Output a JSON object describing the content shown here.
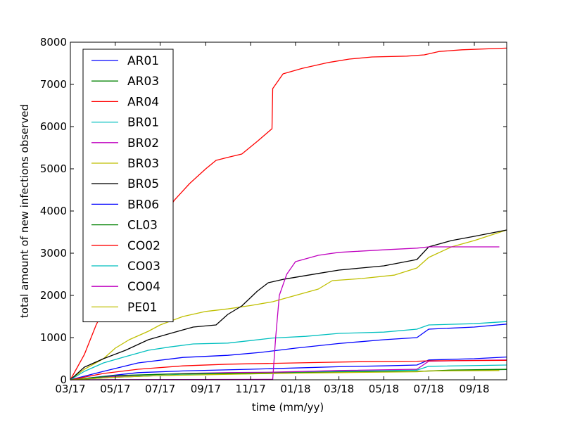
{
  "chart_data": {
    "type": "line",
    "title": "",
    "xlabel": "time (mm/yy)",
    "ylabel": "total amount of new infections observed",
    "x_tick_labels": [
      "03/17",
      "05/17",
      "07/17",
      "09/17",
      "11/17",
      "01/18",
      "03/18",
      "05/18",
      "07/18",
      "09/18"
    ],
    "y_tick_labels": [
      "0",
      "1000",
      "2000",
      "3000",
      "4000",
      "5000",
      "6000",
      "7000",
      "8000"
    ],
    "y_ticks": [
      0,
      1000,
      2000,
      3000,
      4000,
      5000,
      6000,
      7000,
      8000
    ],
    "xlim": [
      "2017-03-01",
      "2018-10-15"
    ],
    "ylim": [
      0,
      8000
    ],
    "grid": false,
    "legend_position": "upper-left",
    "series": [
      {
        "name": "AR01",
        "color": "#0000ff",
        "points": [
          [
            "2017-03-01",
            0
          ],
          [
            "2017-04-15",
            80
          ],
          [
            "2017-06-01",
            170
          ],
          [
            "2017-08-01",
            210
          ],
          [
            "2017-11-01",
            250
          ],
          [
            "2018-01-01",
            280
          ],
          [
            "2018-03-01",
            310
          ],
          [
            "2018-05-01",
            330
          ],
          [
            "2018-06-15",
            350
          ],
          [
            "2018-07-01",
            470
          ],
          [
            "2018-09-01",
            500
          ],
          [
            "2018-10-15",
            540
          ]
        ]
      },
      {
        "name": "AR03",
        "color": "#008000",
        "points": [
          [
            "2017-03-01",
            0
          ],
          [
            "2017-05-01",
            60
          ],
          [
            "2017-07-01",
            100
          ],
          [
            "2017-09-01",
            130
          ],
          [
            "2017-12-01",
            150
          ],
          [
            "2018-03-01",
            180
          ],
          [
            "2018-06-15",
            200
          ],
          [
            "2018-08-01",
            220
          ],
          [
            "2018-10-15",
            245
          ]
        ]
      },
      {
        "name": "AR04",
        "color": "#ff0000",
        "points": [
          [
            "2017-03-01",
            0
          ],
          [
            "2017-03-20",
            600
          ],
          [
            "2017-04-05",
            1300
          ],
          [
            "2017-04-25",
            2000
          ],
          [
            "2017-05-15",
            2600
          ],
          [
            "2017-06-05",
            3100
          ],
          [
            "2017-07-01",
            3700
          ],
          [
            "2017-07-20",
            4250
          ],
          [
            "2017-08-10",
            4650
          ],
          [
            "2017-09-01",
            5000
          ],
          [
            "2017-09-15",
            5200
          ],
          [
            "2017-10-01",
            5270
          ],
          [
            "2017-10-20",
            5350
          ],
          [
            "2017-11-10",
            5650
          ],
          [
            "2017-11-30",
            5950
          ],
          [
            "2017-12-01",
            6900
          ],
          [
            "2017-12-05",
            7000
          ],
          [
            "2017-12-15",
            7250
          ],
          [
            "2018-01-10",
            7380
          ],
          [
            "2018-02-15",
            7520
          ],
          [
            "2018-03-15",
            7600
          ],
          [
            "2018-04-15",
            7650
          ],
          [
            "2018-06-01",
            7670
          ],
          [
            "2018-06-25",
            7700
          ],
          [
            "2018-07-15",
            7780
          ],
          [
            "2018-08-15",
            7820
          ],
          [
            "2018-10-15",
            7860
          ]
        ]
      },
      {
        "name": "BR01",
        "color": "#00bfbf",
        "points": [
          [
            "2017-03-01",
            0
          ],
          [
            "2017-04-01",
            40
          ],
          [
            "2017-06-01",
            90
          ],
          [
            "2017-09-01",
            130
          ],
          [
            "2017-12-01",
            160
          ],
          [
            "2018-03-01",
            200
          ],
          [
            "2018-06-15",
            230
          ],
          [
            "2018-07-01",
            320
          ],
          [
            "2018-10-15",
            350
          ]
        ]
      },
      {
        "name": "BR02",
        "color": "#bf00bf",
        "points": [
          [
            "2017-03-01",
            0
          ],
          [
            "2017-04-01",
            50
          ],
          [
            "2017-06-01",
            110
          ],
          [
            "2017-08-01",
            150
          ],
          [
            "2017-10-01",
            170
          ],
          [
            "2017-12-01",
            180
          ],
          [
            "2018-03-01",
            220
          ],
          [
            "2018-06-15",
            250
          ],
          [
            "2018-07-01",
            440
          ],
          [
            "2018-09-01",
            460
          ],
          [
            "2018-10-15",
            470
          ]
        ]
      },
      {
        "name": "BR03",
        "color": "#bfbf00",
        "points": [
          [
            "2017-03-01",
            0
          ],
          [
            "2017-03-20",
            250
          ],
          [
            "2017-04-15",
            500
          ],
          [
            "2017-05-01",
            750
          ],
          [
            "2017-05-20",
            950
          ],
          [
            "2017-06-15",
            1150
          ],
          [
            "2017-07-01",
            1300
          ],
          [
            "2017-08-01",
            1500
          ],
          [
            "2017-09-01",
            1620
          ],
          [
            "2017-10-01",
            1680
          ],
          [
            "2017-11-01",
            1760
          ],
          [
            "2017-12-01",
            1850
          ],
          [
            "2018-01-01",
            2000
          ],
          [
            "2018-02-01",
            2150
          ],
          [
            "2018-02-20",
            2350
          ],
          [
            "2018-04-01",
            2400
          ],
          [
            "2018-05-15",
            2480
          ],
          [
            "2018-06-15",
            2650
          ],
          [
            "2018-07-01",
            2900
          ],
          [
            "2018-08-01",
            3150
          ],
          [
            "2018-09-01",
            3300
          ],
          [
            "2018-10-15",
            3550
          ]
        ]
      },
      {
        "name": "BR05",
        "color": "#000000",
        "points": [
          [
            "2017-03-01",
            0
          ],
          [
            "2017-03-20",
            300
          ],
          [
            "2017-04-15",
            500
          ],
          [
            "2017-05-15",
            700
          ],
          [
            "2017-06-15",
            950
          ],
          [
            "2017-07-15",
            1100
          ],
          [
            "2017-08-15",
            1250
          ],
          [
            "2017-09-15",
            1300
          ],
          [
            "2017-10-01",
            1550
          ],
          [
            "2017-10-20",
            1750
          ],
          [
            "2017-11-10",
            2100
          ],
          [
            "2017-11-25",
            2300
          ],
          [
            "2017-12-15",
            2380
          ],
          [
            "2018-02-01",
            2520
          ],
          [
            "2018-03-01",
            2600
          ],
          [
            "2018-05-01",
            2700
          ],
          [
            "2018-06-15",
            2850
          ],
          [
            "2018-07-01",
            3150
          ],
          [
            "2018-08-01",
            3300
          ],
          [
            "2018-09-01",
            3400
          ],
          [
            "2018-10-15",
            3550
          ]
        ]
      },
      {
        "name": "BR06",
        "color": "#0000ff",
        "points": [
          [
            "2017-03-01",
            0
          ],
          [
            "2017-04-15",
            200
          ],
          [
            "2017-06-01",
            400
          ],
          [
            "2017-08-01",
            530
          ],
          [
            "2017-10-01",
            580
          ],
          [
            "2017-11-15",
            650
          ],
          [
            "2018-01-01",
            750
          ],
          [
            "2018-03-01",
            860
          ],
          [
            "2018-05-01",
            950
          ],
          [
            "2018-06-15",
            1000
          ],
          [
            "2018-07-01",
            1200
          ],
          [
            "2018-09-01",
            1250
          ],
          [
            "2018-10-15",
            1320
          ]
        ]
      },
      {
        "name": "CL03",
        "color": "#008000",
        "points": [
          [
            "2017-03-01",
            0
          ],
          [
            "2017-05-01",
            100
          ],
          [
            "2017-07-01",
            130
          ],
          [
            "2017-09-01",
            150
          ],
          [
            "2017-12-01",
            160
          ],
          [
            "2018-03-01",
            180
          ],
          [
            "2018-06-15",
            200
          ],
          [
            "2018-08-01",
            230
          ],
          [
            "2018-10-15",
            250
          ]
        ]
      },
      {
        "name": "CO02",
        "color": "#ff0000",
        "points": [
          [
            "2017-03-01",
            0
          ],
          [
            "2017-04-15",
            150
          ],
          [
            "2017-06-01",
            250
          ],
          [
            "2017-08-01",
            330
          ],
          [
            "2017-10-01",
            370
          ],
          [
            "2017-12-01",
            390
          ],
          [
            "2018-02-01",
            410
          ],
          [
            "2018-04-01",
            430
          ],
          [
            "2018-06-15",
            440
          ],
          [
            "2018-07-01",
            450
          ],
          [
            "2018-10-15",
            460
          ]
        ]
      },
      {
        "name": "CO03",
        "color": "#00bfbf",
        "points": [
          [
            "2017-03-01",
            0
          ],
          [
            "2017-03-20",
            200
          ],
          [
            "2017-04-15",
            400
          ],
          [
            "2017-05-15",
            550
          ],
          [
            "2017-06-15",
            700
          ],
          [
            "2017-07-15",
            780
          ],
          [
            "2017-08-15",
            850
          ],
          [
            "2017-10-01",
            870
          ],
          [
            "2017-11-01",
            930
          ],
          [
            "2017-12-01",
            990
          ],
          [
            "2018-01-15",
            1030
          ],
          [
            "2018-03-01",
            1100
          ],
          [
            "2018-05-01",
            1130
          ],
          [
            "2018-06-15",
            1200
          ],
          [
            "2018-07-01",
            1300
          ],
          [
            "2018-09-01",
            1330
          ],
          [
            "2018-10-15",
            1380
          ]
        ]
      },
      {
        "name": "CO04",
        "color": "#bf00bf",
        "points": [
          [
            "2017-03-01",
            0
          ],
          [
            "2017-12-01",
            10
          ],
          [
            "2017-12-05",
            1000
          ],
          [
            "2017-12-10",
            2000
          ],
          [
            "2017-12-20",
            2500
          ],
          [
            "2018-01-01",
            2800
          ],
          [
            "2018-02-01",
            2950
          ],
          [
            "2018-03-01",
            3020
          ],
          [
            "2018-05-01",
            3080
          ],
          [
            "2018-06-15",
            3120
          ],
          [
            "2018-07-01",
            3150
          ],
          [
            "2018-10-05",
            3150
          ]
        ]
      },
      {
        "name": "PE01",
        "color": "#bfbf00",
        "points": [
          [
            "2017-03-01",
            0
          ],
          [
            "2017-05-01",
            60
          ],
          [
            "2017-07-01",
            100
          ],
          [
            "2017-09-01",
            120
          ],
          [
            "2017-12-01",
            150
          ],
          [
            "2018-03-01",
            170
          ],
          [
            "2018-06-15",
            190
          ],
          [
            "2018-07-01",
            210
          ],
          [
            "2018-10-05",
            220
          ]
        ]
      }
    ]
  }
}
